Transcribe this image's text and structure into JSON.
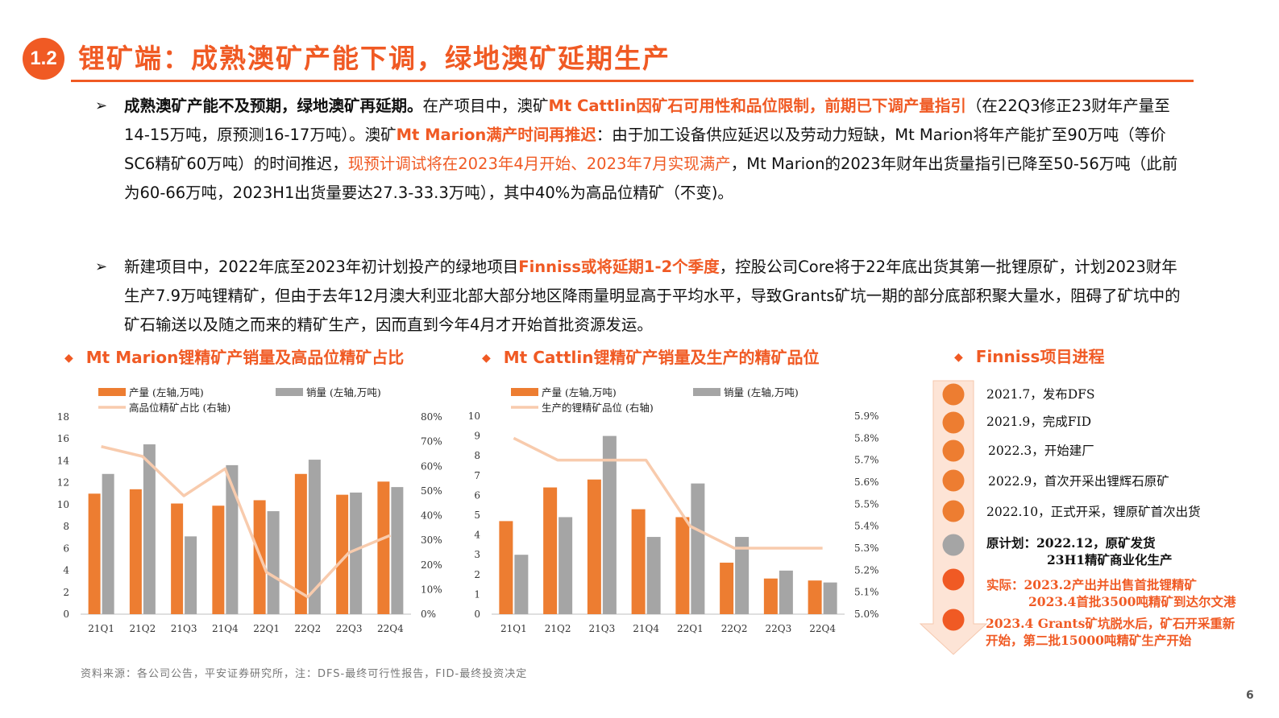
{
  "header": {
    "section_number": "1.2",
    "title": "锂矿端：成熟澳矿产能下调，绿地澳矿延期生产"
  },
  "paragraphs": [
    {
      "bullet": "➢",
      "segments": [
        {
          "text": "成熟澳矿产能不及预期，绿地澳矿再延期。",
          "style": "b"
        },
        {
          "text": "在产项目中，澳矿",
          "style": ""
        },
        {
          "text": "Mt Cattlin因矿石可用性和品位限制，前期已下调产量指引",
          "style": "ob"
        },
        {
          "text": "（在22Q3修正23财年产量至14-15万吨，原预测16-17万吨）。澳矿",
          "style": ""
        },
        {
          "text": "Mt Marion满产时间再推迟",
          "style": "ob"
        },
        {
          "text": "：由于加工设备供应延迟以及劳动力短缺，Mt Marion将年产能扩至90万吨（等价SC6精矿60万吨）的时间推迟，",
          "style": ""
        },
        {
          "text": "现预计调试将在2023年4月开始、2023年7月实现满产",
          "style": "o"
        },
        {
          "text": "，Mt Marion的2023年财年出货量指引已降至50-56万吨（此前为60-66万吨，2023H1出货量要达27.3-33.3万吨），其中40%为高品位精矿（不变)。",
          "style": ""
        }
      ]
    },
    {
      "bullet": "➢",
      "segments": [
        {
          "text": "新建项目中，2022年底至2023年初计划投产的绿地项目",
          "style": ""
        },
        {
          "text": "Finniss或将延期1-2个季度",
          "style": "ob"
        },
        {
          "text": "，控股公司Core将于22年底出货其第一批锂原矿，计划2023财年生产7.9万吨锂精矿，但由于去年12月澳大利亚北部大部分地区降雨量明显高于平均水平，导致Grants矿坑一期的部分底部积聚大量水，阻碍了矿坑中的矿石输送以及随之而来的精矿生产，因而直到今年4月才开始首批资源发运。",
          "style": ""
        }
      ]
    }
  ],
  "sections": {
    "chart1_title": "Mt Marion锂精矿产销量及高品位精矿占比",
    "chart2_title": "Mt Cattlin锂精矿产销量及生产的精矿品位",
    "timeline_title": "Finniss项目进程",
    "diamond": "◆"
  },
  "colors": {
    "accent": "#f05a24",
    "bar_production": "#ed7d31",
    "bar_sales": "#a5a5a5",
    "line": "#f8cbad",
    "timeline_arrow": "#fde4d6",
    "gray_dot": "#a5a5a5",
    "red_dot": "#f05a24"
  },
  "chart_data": [
    {
      "type": "bar",
      "categories": [
        "21Q1",
        "21Q2",
        "21Q3",
        "21Q4",
        "22Q1",
        "22Q2",
        "22Q3",
        "22Q4"
      ],
      "series": [
        {
          "name": "产量 (左轴,万吨)",
          "kind": "bar",
          "axis": "left",
          "values": [
            11.0,
            11.4,
            10.1,
            9.9,
            10.4,
            12.8,
            10.9,
            12.1
          ]
        },
        {
          "name": "销量 (左轴,万吨)",
          "kind": "bar",
          "axis": "left",
          "values": [
            12.8,
            15.5,
            7.1,
            13.6,
            9.4,
            14.1,
            11.1,
            11.6
          ]
        },
        {
          "name": "高品位精矿占比 (右轴)",
          "kind": "line",
          "axis": "right",
          "values": [
            68,
            64,
            48,
            59,
            17,
            7,
            25,
            32
          ]
        }
      ],
      "y_left": {
        "min": 0,
        "max": 18,
        "ticks": [
          "0",
          "2",
          "4",
          "6",
          "8",
          "10",
          "12",
          "14",
          "16",
          "18"
        ]
      },
      "y_right": {
        "min": 0,
        "max": 80,
        "ticks": [
          "0%",
          "10%",
          "20%",
          "30%",
          "40%",
          "50%",
          "60%",
          "70%",
          "80%"
        ]
      },
      "legend_position": "top-left",
      "grid": false
    },
    {
      "type": "bar",
      "categories": [
        "21Q1",
        "21Q2",
        "21Q3",
        "21Q4",
        "22Q1",
        "22Q2",
        "22Q3",
        "22Q4"
      ],
      "series": [
        {
          "name": "产量 (左轴,万吨)",
          "kind": "bar",
          "axis": "left",
          "values": [
            4.7,
            6.4,
            6.8,
            5.3,
            4.9,
            2.6,
            1.8,
            1.7
          ]
        },
        {
          "name": "销量 (左轴,万吨)",
          "kind": "bar",
          "axis": "left",
          "values": [
            3.0,
            4.9,
            9.0,
            3.9,
            6.6,
            3.9,
            2.2,
            1.6
          ]
        },
        {
          "name": "生产的锂精矿品位 (右轴)",
          "kind": "line",
          "axis": "right",
          "values": [
            5.8,
            5.7,
            5.7,
            5.7,
            5.4,
            5.3,
            5.3,
            5.3
          ]
        }
      ],
      "y_left": {
        "min": 0,
        "max": 10,
        "ticks": [
          "0",
          "1",
          "2",
          "3",
          "4",
          "5",
          "6",
          "7",
          "8",
          "9",
          "10"
        ]
      },
      "y_right": {
        "min": 5.0,
        "max": 5.9,
        "ticks": [
          "5.0%",
          "5.1%",
          "5.2%",
          "5.3%",
          "5.4%",
          "5.5%",
          "5.6%",
          "5.7%",
          "5.8%",
          "5.9%"
        ]
      },
      "legend_position": "top-left",
      "grid": false
    }
  ],
  "timeline": [
    {
      "text": "2021.7，发布DFS",
      "dot": "orange",
      "style": "normal"
    },
    {
      "text": "2021.9，完成FID",
      "dot": "orange",
      "style": "normal"
    },
    {
      "text": "2022.3，开始建厂",
      "dot": "orange",
      "style": "normal"
    },
    {
      "text": "2022.9，首次开采出锂辉石原矿",
      "dot": "orange",
      "style": "normal"
    },
    {
      "text": "2022.10，正式开采，锂原矿首次出货",
      "dot": "orange",
      "style": "normal"
    },
    {
      "line1": "原计划：2022.12，原矿发货",
      "line2": "23H1精矿商业化生产",
      "dot": "gray",
      "style": "bold"
    },
    {
      "line1": "实际：2023.2产出并出售首批锂精矿",
      "line2": "2023.4首批3500吨精矿到达尔文港",
      "dot": "red",
      "style": "red"
    },
    {
      "line1": "2023.4 Grants矿坑脱水后，矿石开采重新",
      "line2": "开始，第二批15000吨精矿生产开始",
      "dot": "red",
      "style": "red"
    }
  ],
  "footer": {
    "source": "资料来源：各公司公告，平安证券研究所，注：DFS-最终可行性报告，FID-最终投资决定",
    "page_number": "6"
  }
}
